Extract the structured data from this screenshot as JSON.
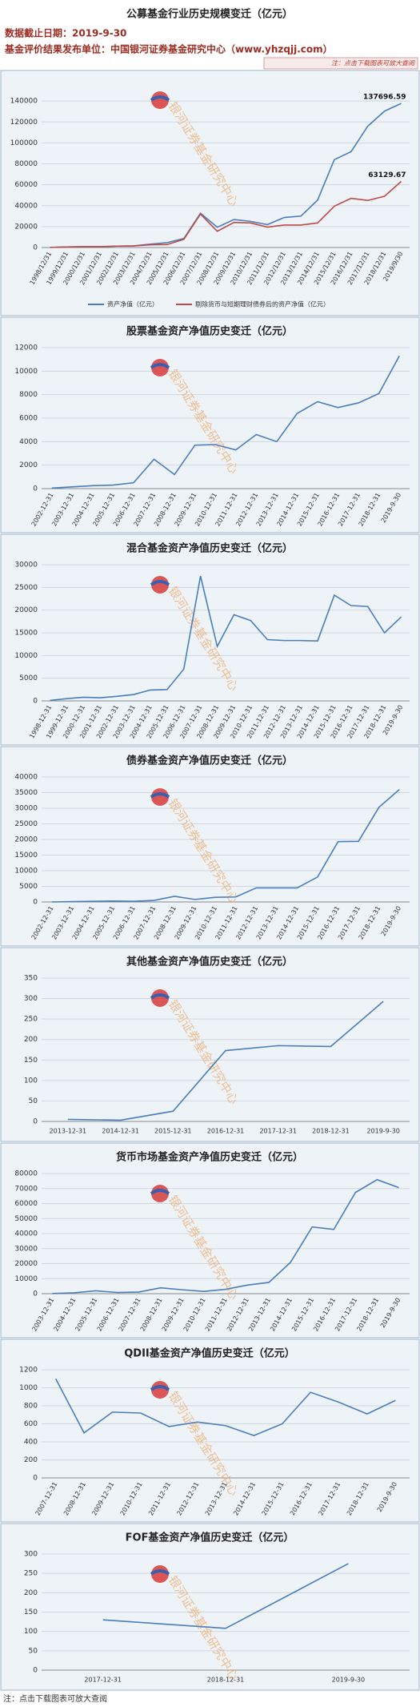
{
  "header": {
    "title": "公募基金行业历史规模变迁（亿元）",
    "date": "数据截止日期：2019-9-30",
    "publisher": "基金评价结果发布单位：中国银河证券基金研究中心（www.yhzqjj.com）",
    "note": "注：点击下载图表可放大查阅"
  },
  "watermark": "银河证券基金研究中心",
  "footer": "注：点击下载图表可放大查阅",
  "chart_data": [
    {
      "type": "line",
      "categories": [
        "1998/12/31",
        "1999/12/31",
        "2000/12/31",
        "2001/12/31",
        "2002/12/31",
        "2003/12/31",
        "2004/12/31",
        "2005/12/31",
        "2006/12/31",
        "2007/12/31",
        "2008/12/31",
        "2009/12/31",
        "2010/12/31",
        "2011/12/31",
        "2012/12/31",
        "2013/12/31",
        "2014/12/31",
        "2015/12/31",
        "2016/12/31",
        "2017/12/31",
        "2018/12/31",
        "2019/9/30"
      ],
      "series": [
        {
          "name": "资产净值（亿元）",
          "color": "#4a7ebb",
          "values": [
            104,
            575,
            846,
            803,
            1331,
            1615,
            3246,
            4691,
            8565,
            32755,
            19389,
            26767,
            24972,
            21918,
            28661,
            30021,
            45354,
            83971,
            91593,
            115997,
            130347,
            137696.59
          ],
          "value_labels": [
            null,
            null,
            null,
            null,
            null,
            null,
            null,
            null,
            null,
            null,
            null,
            null,
            null,
            null,
            null,
            null,
            null,
            null,
            null,
            null,
            null,
            "137696.59"
          ]
        },
        {
          "name": "剔除货币与短期理财债券后的资产净值（亿元）",
          "color": "#be4b48",
          "values": [
            104,
            575,
            846,
            803,
            1331,
            1500,
            2600,
            2800,
            7800,
            32000,
            15500,
            24000,
            23500,
            19500,
            21500,
            21500,
            23500,
            39500,
            47000,
            45000,
            49000,
            63129.67
          ],
          "value_labels": [
            null,
            null,
            null,
            null,
            null,
            null,
            null,
            null,
            null,
            null,
            null,
            null,
            null,
            null,
            null,
            null,
            null,
            null,
            null,
            null,
            null,
            "63129.67"
          ]
        }
      ],
      "ylim": [
        0,
        160000
      ],
      "yticks": [
        0,
        20000,
        40000,
        60000,
        80000,
        100000,
        120000,
        140000
      ],
      "grid": true,
      "legend": "bottom"
    },
    {
      "type": "line",
      "title": "股票基金资产净值历史变迁（亿元）",
      "color": "#4a7ebb",
      "categories": [
        "2002-12-31",
        "2003-12-31",
        "2004-12-31",
        "2005-12-31",
        "2006-12-31",
        "2007-12-31",
        "2008-12-31",
        "2009-12-31",
        "2010-12-31",
        "2011-12-31",
        "2012-12-31",
        "2013-12-31",
        "2014-12-31",
        "2015-12-31",
        "2016-12-31",
        "2017-12-31",
        "2018-12-31",
        "2019-9-30"
      ],
      "values": [
        50,
        150,
        250,
        300,
        500,
        2500,
        1200,
        3700,
        3750,
        3300,
        4600,
        4000,
        6400,
        7400,
        6900,
        7300,
        8100,
        11300
      ],
      "ylim": [
        0,
        12000
      ],
      "yticks": [
        0,
        2000,
        4000,
        6000,
        8000,
        10000,
        12000
      ],
      "grid": true
    },
    {
      "type": "line",
      "title": "混合基金资产净值历史变迁（亿元）",
      "color": "#4a7ebb",
      "categories": [
        "1998-12-31",
        "1999-12-31",
        "2000-12-31",
        "2001-12-31",
        "2002-12-31",
        "2003-12-31",
        "2004-12-31",
        "2005-12-31",
        "2006-12-31",
        "2007-12-31",
        "2008-12-31",
        "2009-12-31",
        "2010-12-31",
        "2011-12-31",
        "2012-12-31",
        "2013-12-31",
        "2014-12-31",
        "2015-12-31",
        "2016-12-31",
        "2017-12-31",
        "2018-12-31",
        "2019-9-30"
      ],
      "values": [
        100,
        500,
        800,
        700,
        1000,
        1400,
        2400,
        2500,
        7000,
        27500,
        12000,
        19000,
        17700,
        13500,
        13300,
        13300,
        13200,
        23300,
        21000,
        20800,
        15000,
        18500
      ],
      "ylim": [
        0,
        30000
      ],
      "yticks": [
        0,
        5000,
        10000,
        15000,
        20000,
        25000,
        30000
      ],
      "grid": true
    },
    {
      "type": "line",
      "title": "债券基金资产净值历史变迁（亿元）",
      "color": "#4a7ebb",
      "categories": [
        "2002-12-31",
        "2003-12-31",
        "2004-12-31",
        "2005-12-31",
        "2006-12-31",
        "2007-12-31",
        "2008-12-31",
        "2009-12-31",
        "2010-12-31",
        "2011-12-31",
        "2012-12-31",
        "2013-12-31",
        "2014-12-31",
        "2015-12-31",
        "2016-12-31",
        "2017-12-31",
        "2018-12-31",
        "2019-9-30"
      ],
      "values": [
        0,
        100,
        200,
        300,
        200,
        500,
        1800,
        800,
        1500,
        1600,
        4500,
        4500,
        4500,
        8000,
        19300,
        19400,
        30300,
        36000
      ],
      "ylim": [
        0,
        40000
      ],
      "yticks": [
        0,
        5000,
        10000,
        15000,
        20000,
        25000,
        30000,
        35000,
        40000
      ],
      "grid": true
    },
    {
      "type": "line",
      "title": "其他基金资产净值历史变迁（亿元）",
      "color": "#4a7ebb",
      "categories": [
        "2013-12-31",
        "2014-12-31",
        "2015-12-31",
        "2016-12-31",
        "2017-12-31",
        "2018-12-31",
        "2019-9-30"
      ],
      "values": [
        5,
        3,
        25,
        173,
        185,
        183,
        293
      ],
      "ylim": [
        0,
        350
      ],
      "yticks": [
        0,
        50,
        100,
        150,
        200,
        250,
        300,
        350
      ],
      "grid": true
    },
    {
      "type": "line",
      "title": "货币市场基金资产净值历史变迁（亿元）",
      "color": "#4a7ebb",
      "categories": [
        "2003-12-31",
        "2004-12-31",
        "2005-12-31",
        "2006-12-31",
        "2007-12-31",
        "2008-12-31",
        "2009-12-31",
        "2010-12-31",
        "2011-12-31",
        "2012-12-31",
        "2013-12-31",
        "2014-12-31",
        "2015-12-31",
        "2016-12-31",
        "2017-12-31",
        "2018-12-31",
        "2019-9-30"
      ],
      "values": [
        100,
        600,
        1900,
        800,
        1100,
        3900,
        2600,
        1500,
        2900,
        5700,
        7500,
        20900,
        44400,
        42800,
        67400,
        75900,
        70600
      ],
      "ylim": [
        0,
        80000
      ],
      "yticks": [
        0,
        10000,
        20000,
        30000,
        40000,
        50000,
        60000,
        70000,
        80000
      ],
      "grid": true
    },
    {
      "type": "line",
      "title": "QDII基金资产净值历史变迁（亿元）",
      "color": "#4a7ebb",
      "categories": [
        "2007-12-31",
        "2008-12-31",
        "2009-12-31",
        "2010-12-31",
        "2011-12-31",
        "2012-12-31",
        "2013-12-31",
        "2014-12-31",
        "2015-12-31",
        "2016-12-31",
        "2017-12-31",
        "2018-12-31",
        "2019-9-30"
      ],
      "values": [
        1100,
        500,
        730,
        720,
        570,
        620,
        580,
        470,
        600,
        950,
        840,
        710,
        860
      ],
      "ylim": [
        0,
        1200
      ],
      "yticks": [
        0,
        200,
        400,
        600,
        800,
        1000,
        1200
      ],
      "grid": true
    },
    {
      "type": "line",
      "title": "FOF基金资产净值历史变迁（亿元）",
      "color": "#4a7ebb",
      "categories": [
        "2017-12-31",
        "2018-12-31",
        "2019-9-30"
      ],
      "values": [
        130,
        108,
        275
      ],
      "ylim": [
        0,
        300
      ],
      "yticks": [
        0,
        50,
        100,
        150,
        200,
        250,
        300
      ],
      "grid": true
    }
  ]
}
